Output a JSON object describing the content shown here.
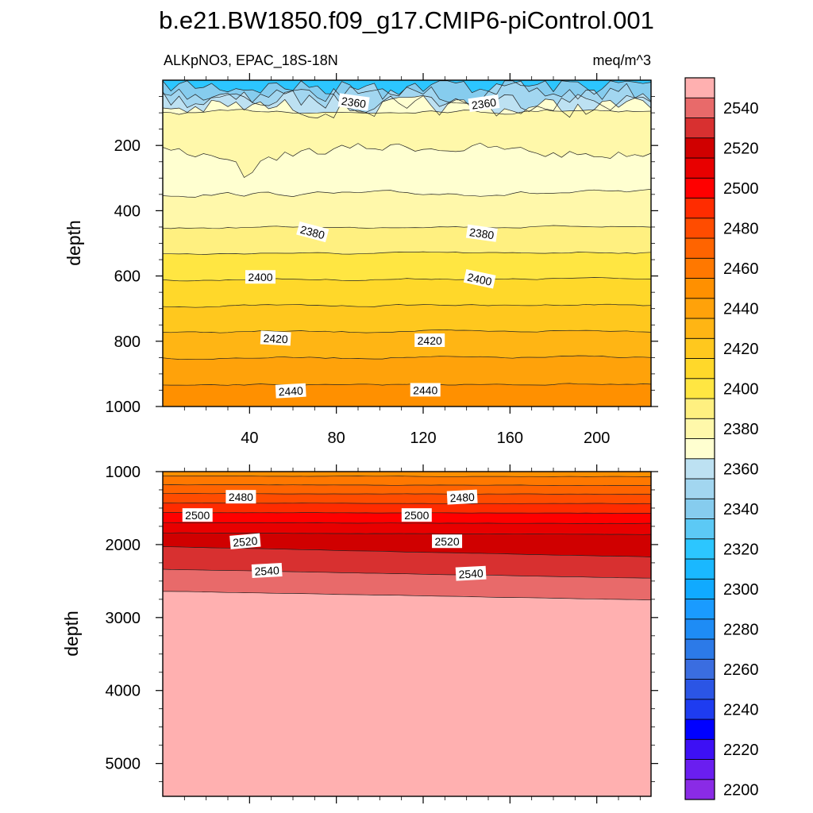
{
  "chart_data": {
    "type": "heatmap",
    "title": "b.e21.BW1850.f09_g17.CMIP6-piControl.001",
    "subtitle_left": "ALKpNO3, EPAC_18S-18N",
    "subtitle_right": "meq/m^3",
    "ylabel": "depth",
    "xrange": [
      0,
      225
    ],
    "x_ticks": [
      40,
      80,
      120,
      160,
      200
    ],
    "x_tick_labels": [
      "40",
      "80",
      "120",
      "160",
      "200"
    ],
    "top_panel": {
      "yrange": [
        0,
        1000
      ],
      "y_ticks": [
        200,
        400,
        600,
        800,
        1000
      ],
      "y_tick_labels": [
        "200",
        "400",
        "600",
        "800",
        "1000"
      ],
      "contour_labels": [
        {
          "text": "2360",
          "x": 88,
          "y": 68,
          "angle": 8
        },
        {
          "text": "2360",
          "x": 148,
          "y": 72,
          "angle": -8
        },
        {
          "text": "2380",
          "x": 69,
          "y": 466,
          "angle": 15
        },
        {
          "text": "2380",
          "x": 147,
          "y": 470,
          "angle": 8
        },
        {
          "text": "2400",
          "x": 45,
          "y": 604,
          "angle": 0
        },
        {
          "text": "2400",
          "x": 146,
          "y": 610,
          "angle": 12
        },
        {
          "text": "2420",
          "x": 52,
          "y": 792,
          "angle": 3
        },
        {
          "text": "2420",
          "x": 123,
          "y": 798,
          "angle": 0
        },
        {
          "text": "2440",
          "x": 59,
          "y": 953,
          "angle": -3
        },
        {
          "text": "2440",
          "x": 121,
          "y": 950,
          "angle": 0
        }
      ]
    },
    "bottom_panel": {
      "yrange": [
        1000,
        5450
      ],
      "y_ticks": [
        1000,
        2000,
        3000,
        4000,
        5000
      ],
      "y_tick_labels": [
        "1000",
        "2000",
        "3000",
        "4000",
        "5000"
      ],
      "contour_labels": [
        {
          "text": "2480",
          "x": 36,
          "y": 1350,
          "angle": 0
        },
        {
          "text": "2480",
          "x": 138,
          "y": 1355,
          "angle": -3
        },
        {
          "text": "2500",
          "x": 16,
          "y": 1600,
          "angle": 0
        },
        {
          "text": "2500",
          "x": 117,
          "y": 1600,
          "angle": 0
        },
        {
          "text": "2520",
          "x": 38,
          "y": 1960,
          "angle": -5
        },
        {
          "text": "2520",
          "x": 131,
          "y": 1960,
          "angle": 0
        },
        {
          "text": "2540",
          "x": 48,
          "y": 2360,
          "angle": -3
        },
        {
          "text": "2540",
          "x": 142,
          "y": 2400,
          "angle": -3
        }
      ]
    },
    "colorbar": {
      "levels_start": 2195,
      "levels_step": 10,
      "tick_labels": [
        "2200",
        "2220",
        "2240",
        "2260",
        "2280",
        "2300",
        "2320",
        "2340",
        "2360",
        "2380",
        "2400",
        "2420",
        "2440",
        "2460",
        "2480",
        "2500",
        "2520",
        "2540"
      ],
      "colors": [
        "#8a2be6",
        "#6a1ef0",
        "#3d10f5",
        "#0000ff",
        "#1e3cf0",
        "#2b55e5",
        "#3a6de0",
        "#2c7ae8",
        "#1e8cf5",
        "#1a9bff",
        "#10aaff",
        "#1ab8ff",
        "#2cc6ff",
        "#5cc9f5",
        "#86ccee",
        "#a2d6f0",
        "#bde1f2",
        "#ffffd0",
        "#fff8aa",
        "#fff080",
        "#ffe642",
        "#ffd82a",
        "#ffc81e",
        "#ffb514",
        "#ffa20a",
        "#ff9000",
        "#ff7800",
        "#ff6400",
        "#ff4c00",
        "#ff2c00",
        "#ff0000",
        "#e80000",
        "#d00000",
        "#d83030",
        "#e86a6a",
        "#ffb0b0"
      ]
    }
  }
}
